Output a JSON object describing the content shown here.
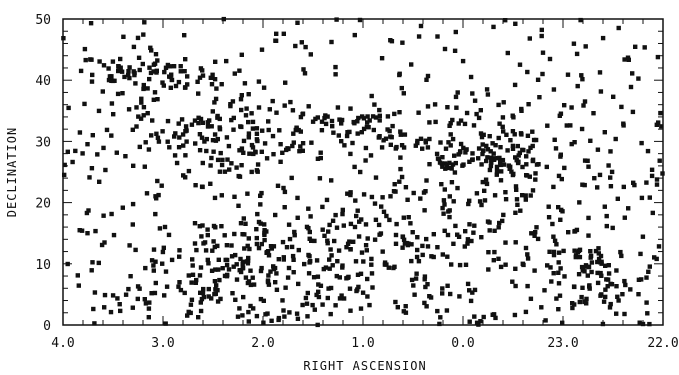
{
  "chart_data": {
    "type": "scatter",
    "title": "",
    "xlabel": "RIGHT ASCENSION",
    "ylabel": "DECLINATION",
    "x_tick_labels": [
      "4.0",
      "3.0",
      "2.0",
      "1.0",
      "0.0",
      "23.0",
      "22.0"
    ],
    "y_tick_labels": [
      "0",
      "10",
      "20",
      "30",
      "40",
      "50"
    ],
    "x_ticks": [
      28,
      27,
      26,
      25,
      24,
      23,
      22
    ],
    "y_ticks": [
      0,
      10,
      20,
      30,
      40,
      50
    ],
    "xlim": [
      28,
      22
    ],
    "ylim": [
      0,
      50
    ],
    "x_axis_note": "right ascension in hours; axis runs 4h through 0h to 22h, decreasing to the right",
    "grid": false,
    "marker": "filled square",
    "marker_color": "#111111",
    "clusters": [
      {
        "ra_center": 27.2,
        "dec_center": 41.0,
        "ra_spread": 0.35,
        "dec_spread": 1.6,
        "count": 70
      },
      {
        "ra_center": 25.0,
        "dec_center": 32.0,
        "ra_spread": 1.5,
        "dec_spread": 2.4,
        "count": 160
      },
      {
        "ra_center": 26.4,
        "dec_center": 30.0,
        "ra_spread": 0.4,
        "dec_spread": 4.0,
        "count": 90
      },
      {
        "ra_center": 23.7,
        "dec_center": 27.0,
        "ra_spread": 0.45,
        "dec_spread": 2.2,
        "count": 110
      },
      {
        "ra_center": 22.8,
        "dec_center": 8.0,
        "ra_spread": 0.25,
        "dec_spread": 3.0,
        "count": 80
      },
      {
        "ra_center": 26.3,
        "dec_center": 8.0,
        "ra_spread": 0.6,
        "dec_spread": 5.0,
        "count": 150
      },
      {
        "ra_center": 25.2,
        "dec_center": 10.0,
        "ra_spread": 0.8,
        "dec_spread": 6.0,
        "count": 140
      },
      {
        "ra_center": 24.3,
        "dec_center": 15.0,
        "ra_spread": 0.8,
        "dec_spread": 6.5,
        "count": 150
      }
    ],
    "background_points": 480
  }
}
